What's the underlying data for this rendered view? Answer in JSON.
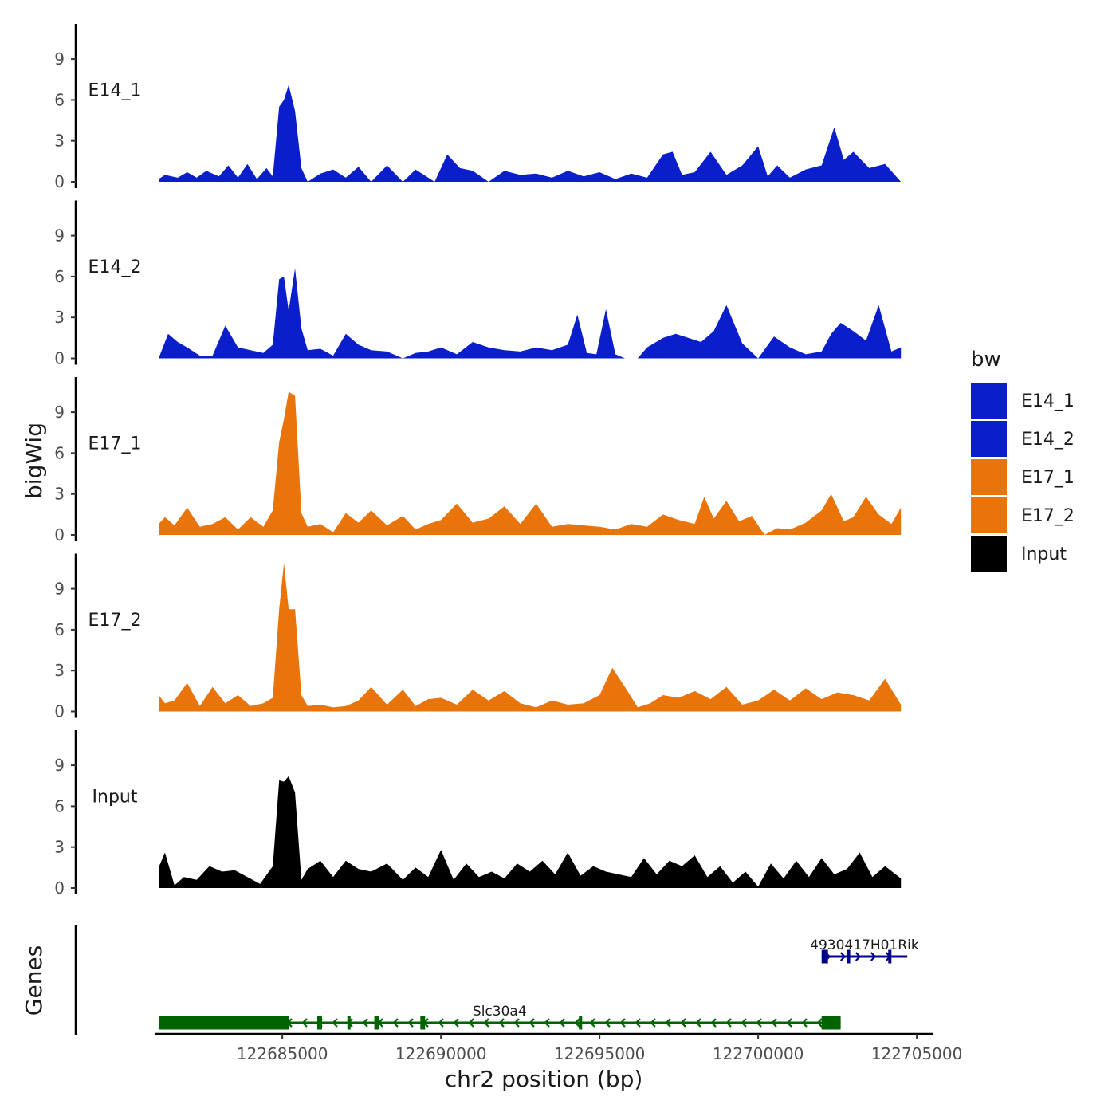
{
  "chart_data": {
    "type": "area",
    "ylabel": "bigWig",
    "xlabel": "chr2 position (bp)",
    "xlim": [
      122681000,
      122705500
    ],
    "x_ticks": [
      122685000,
      122690000,
      122695000,
      122700000,
      122705000
    ],
    "x_tick_labels": [
      "122685000",
      "122690000",
      "122695000",
      "122700000",
      "122705000"
    ],
    "ylim": [
      0,
      11.5
    ],
    "y_ticks": [
      0,
      3,
      6,
      9
    ],
    "y_tick_labels": [
      "0",
      "3",
      "6",
      "9"
    ],
    "legend": {
      "title": "bw",
      "position": "right",
      "entries": [
        {
          "label": "E14_1",
          "color": "#0A1ECB"
        },
        {
          "label": "E14_2",
          "color": "#0A1ECB"
        },
        {
          "label": "E17_1",
          "color": "#E8740A"
        },
        {
          "label": "E17_2",
          "color": "#E8740A"
        },
        {
          "label": "Input",
          "color": "#000000"
        }
      ]
    },
    "tracks": [
      {
        "name": "E14_1",
        "color": "#0A1ECB",
        "x": [
          122681100,
          122681300,
          122681700,
          122682000,
          122682300,
          122682600,
          122683000,
          122683300,
          122683600,
          122683900,
          122684200,
          122684500,
          122684700,
          122684900,
          122685050,
          122685200,
          122685400,
          122685600,
          122685800,
          122686200,
          122686600,
          122687000,
          122687400,
          122687800,
          122688300,
          122688800,
          122689200,
          122689800,
          122690200,
          122690600,
          122691000,
          122691500,
          122692000,
          122692500,
          122693000,
          122693500,
          122694000,
          122694500,
          122695000,
          122695500,
          122696000,
          122696500,
          122697000,
          122697300,
          122697600,
          122698000,
          122698500,
          122699000,
          122699500,
          122700000,
          122700300,
          122700600,
          122701000,
          122701500,
          122702000,
          122702400,
          122702700,
          122703000,
          122703500,
          122704000,
          122704500
        ],
        "values": [
          0.2,
          0.5,
          0.3,
          0.7,
          0.3,
          0.8,
          0.4,
          1.2,
          0.3,
          1.3,
          0.2,
          1.0,
          0.4,
          5.5,
          6.0,
          7.1,
          5.2,
          1.0,
          0.0,
          0.6,
          0.9,
          0.3,
          1.1,
          0.0,
          1.2,
          0.0,
          0.9,
          0.0,
          2.0,
          1.0,
          0.8,
          0.0,
          0.8,
          0.5,
          0.6,
          0.3,
          0.8,
          0.4,
          0.7,
          0.2,
          0.6,
          0.3,
          2.0,
          2.2,
          0.5,
          0.7,
          2.2,
          0.5,
          1.2,
          2.6,
          0.4,
          1.2,
          0.3,
          0.9,
          1.2,
          4.0,
          1.6,
          2.2,
          1.0,
          1.3,
          0.0
        ]
      },
      {
        "name": "E14_2",
        "color": "#0A1ECB",
        "x": [
          122681100,
          122681400,
          122681700,
          122682000,
          122682400,
          122682800,
          122683200,
          122683600,
          122684000,
          122684400,
          122684700,
          122684900,
          122685050,
          122685200,
          122685400,
          122685600,
          122685800,
          122686200,
          122686600,
          122687000,
          122687400,
          122687800,
          122688300,
          122688800,
          122689200,
          122689600,
          122690000,
          122690500,
          122691000,
          122691500,
          122692000,
          122692500,
          122693000,
          122693500,
          122694000,
          122694300,
          122694600,
          122694900,
          122695200,
          122695500,
          122695800,
          122696200,
          122696500,
          122697000,
          122697400,
          122697800,
          122698200,
          122698600,
          122699000,
          122699500,
          122700000,
          122700500,
          122701000,
          122701500,
          122702000,
          122702300,
          122702600,
          122703000,
          122703400,
          122703800,
          122704200,
          122704500
        ],
        "values": [
          0.0,
          1.8,
          1.2,
          0.8,
          0.2,
          0.2,
          2.4,
          0.8,
          0.6,
          0.4,
          1.0,
          5.8,
          6.0,
          3.5,
          6.6,
          2.2,
          0.6,
          0.7,
          0.2,
          1.8,
          1.0,
          0.6,
          0.5,
          0.0,
          0.4,
          0.5,
          0.8,
          0.3,
          1.2,
          0.8,
          0.6,
          0.5,
          0.8,
          0.6,
          1.0,
          3.2,
          0.4,
          0.3,
          3.6,
          0.3,
          0.0,
          0.0,
          0.8,
          1.5,
          1.8,
          1.5,
          1.2,
          2.0,
          3.9,
          1.1,
          0.0,
          1.6,
          0.8,
          0.3,
          0.5,
          1.8,
          2.6,
          2.0,
          1.3,
          3.9,
          0.5,
          0.8
        ]
      },
      {
        "name": "E17_1",
        "color": "#E8740A",
        "x": [
          122681100,
          122681300,
          122681600,
          122682000,
          122682400,
          122682800,
          122683200,
          122683600,
          122684000,
          122684400,
          122684700,
          122684900,
          122685050,
          122685200,
          122685400,
          122685600,
          122685800,
          122686200,
          122686600,
          122687000,
          122687400,
          122687800,
          122688300,
          122688800,
          122689200,
          122689600,
          122690000,
          122690500,
          122691000,
          122691500,
          122692000,
          122692500,
          122693000,
          122693500,
          122694000,
          122694500,
          122695000,
          122695500,
          122696000,
          122696500,
          122697000,
          122697500,
          122698000,
          122698300,
          122698600,
          122699000,
          122699400,
          122699800,
          122700200,
          122700600,
          122701000,
          122701500,
          122702000,
          122702300,
          122702700,
          122703000,
          122703400,
          122703800,
          122704200,
          122704500
        ],
        "values": [
          0.8,
          1.3,
          0.7,
          2.0,
          0.6,
          0.8,
          1.3,
          0.4,
          1.3,
          0.6,
          1.8,
          6.8,
          8.5,
          10.5,
          10.2,
          1.6,
          0.6,
          0.8,
          0.2,
          1.6,
          0.9,
          1.8,
          0.7,
          1.4,
          0.4,
          0.8,
          1.1,
          2.3,
          0.9,
          1.2,
          2.1,
          0.8,
          2.3,
          0.6,
          0.8,
          0.7,
          0.6,
          0.4,
          0.8,
          0.6,
          1.5,
          1.1,
          0.8,
          2.8,
          1.2,
          2.5,
          1.0,
          1.4,
          0.0,
          0.5,
          0.4,
          0.9,
          1.8,
          3.0,
          1.0,
          1.3,
          2.8,
          1.5,
          0.8,
          2.0
        ]
      },
      {
        "name": "E17_2",
        "color": "#E8740A",
        "x": [
          122681100,
          122681300,
          122681600,
          122682000,
          122682400,
          122682800,
          122683200,
          122683600,
          122684000,
          122684400,
          122684700,
          122684900,
          122685050,
          122685200,
          122685400,
          122685600,
          122685800,
          122686200,
          122686600,
          122687000,
          122687400,
          122687800,
          122688300,
          122688800,
          122689200,
          122689600,
          122690000,
          122690500,
          122691000,
          122691500,
          122692000,
          122692500,
          122693000,
          122693500,
          122694000,
          122694500,
          122695000,
          122695400,
          122695800,
          122696200,
          122696600,
          122697000,
          122697500,
          122698000,
          122698500,
          122699000,
          122699500,
          122700000,
          122700500,
          122701000,
          122701500,
          122702000,
          122702500,
          122703000,
          122703500,
          122704000,
          122704500
        ],
        "values": [
          1.2,
          0.6,
          0.8,
          2.1,
          0.4,
          1.8,
          0.6,
          1.2,
          0.4,
          0.6,
          1.0,
          7.5,
          10.9,
          7.5,
          7.5,
          1.2,
          0.4,
          0.5,
          0.3,
          0.4,
          0.8,
          1.8,
          0.5,
          1.6,
          0.4,
          0.9,
          1.0,
          0.5,
          1.6,
          0.8,
          1.5,
          0.6,
          0.3,
          0.8,
          0.5,
          0.6,
          1.2,
          3.2,
          1.8,
          0.3,
          0.6,
          1.2,
          1.0,
          1.5,
          0.9,
          1.8,
          0.5,
          0.8,
          1.6,
          0.8,
          1.7,
          0.9,
          1.4,
          1.2,
          0.8,
          2.4,
          0.5
        ]
      },
      {
        "name": "Input",
        "color": "#000000",
        "x": [
          122681100,
          122681300,
          122681600,
          122681900,
          122682300,
          122682700,
          122683100,
          122683500,
          122683900,
          122684300,
          122684700,
          122684900,
          122685050,
          122685200,
          122685400,
          122685600,
          122685800,
          122686200,
          122686600,
          122687000,
          122687400,
          122687800,
          122688300,
          122688800,
          122689200,
          122689600,
          122690000,
          122690400,
          122690800,
          122691200,
          122691600,
          122692000,
          122692400,
          122692800,
          122693200,
          122693600,
          122694000,
          122694400,
          122694800,
          122695200,
          122695600,
          122696000,
          122696400,
          122696800,
          122697200,
          122697600,
          122698000,
          122698400,
          122698800,
          122699200,
          122699600,
          122700000,
          122700400,
          122700800,
          122701200,
          122701600,
          122702000,
          122702400,
          122702800,
          122703200,
          122703600,
          122704000,
          122704500
        ],
        "values": [
          1.5,
          2.6,
          0.2,
          0.8,
          0.6,
          1.6,
          1.2,
          1.3,
          0.8,
          0.3,
          1.6,
          7.9,
          7.8,
          8.2,
          7.0,
          0.6,
          1.4,
          2.0,
          0.8,
          2.0,
          1.4,
          1.2,
          1.8,
          0.6,
          1.5,
          0.8,
          2.8,
          0.6,
          1.8,
          0.8,
          1.2,
          0.7,
          1.8,
          1.2,
          2.0,
          1.0,
          2.6,
          0.9,
          1.6,
          1.2,
          1.0,
          0.8,
          2.2,
          1.0,
          2.0,
          1.6,
          2.4,
          0.8,
          1.6,
          0.4,
          1.2,
          0.1,
          1.8,
          0.7,
          2.0,
          0.8,
          2.2,
          1.0,
          1.4,
          2.6,
          0.8,
          1.6,
          0.7
        ]
      }
    ],
    "genes": [
      {
        "name": "4930417H01Rik",
        "color": "#00008B",
        "strand": "+",
        "start": 122702000,
        "end": 122704700,
        "exons": [
          [
            122702000,
            122702200
          ],
          [
            122702800,
            122702900
          ],
          [
            122704100,
            122704200
          ]
        ]
      },
      {
        "name": "Slc30a4",
        "color": "#006400",
        "strand": "-",
        "start": 122681100,
        "end": 122702600,
        "exons": [
          [
            122681100,
            122685200
          ],
          [
            122686100,
            122686250
          ],
          [
            122687050,
            122687150
          ],
          [
            122687900,
            122688050
          ],
          [
            122689350,
            122689500
          ],
          [
            122694350,
            122694450
          ],
          [
            122702000,
            122702600
          ]
        ]
      }
    ],
    "gene_track_label": "Genes"
  }
}
